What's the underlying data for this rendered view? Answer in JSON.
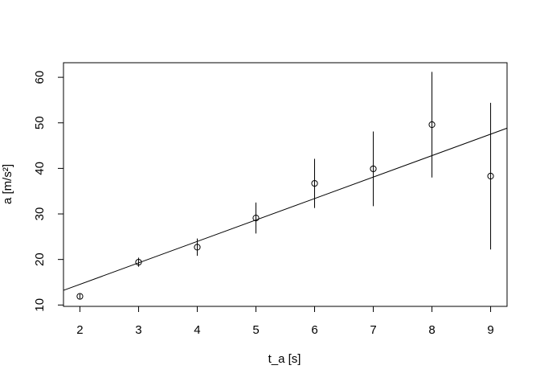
{
  "chart_data": {
    "type": "scatter",
    "x_label": "t_a [s]",
    "y_label": "a [m/s²]",
    "x": [
      2,
      3,
      4,
      5,
      6,
      7,
      8,
      9
    ],
    "values": [
      11.9,
      19.4,
      22.7,
      29.1,
      36.7,
      39.9,
      49.6,
      38.3
    ],
    "errors": [
      0.5,
      1.0,
      1.9,
      3.4,
      5.4,
      8.2,
      11.6,
      16.1
    ],
    "color": "#000000",
    "fit": {
      "intercept": 5.12,
      "slope": 4.71
    },
    "xlim": [
      1.72,
      9.28
    ],
    "xticks": [
      2,
      3,
      4,
      5,
      6,
      7,
      8,
      9
    ],
    "ylim": [
      9.7,
      63.2
    ],
    "yticks": [
      10,
      20,
      30,
      40,
      50,
      60
    ]
  }
}
